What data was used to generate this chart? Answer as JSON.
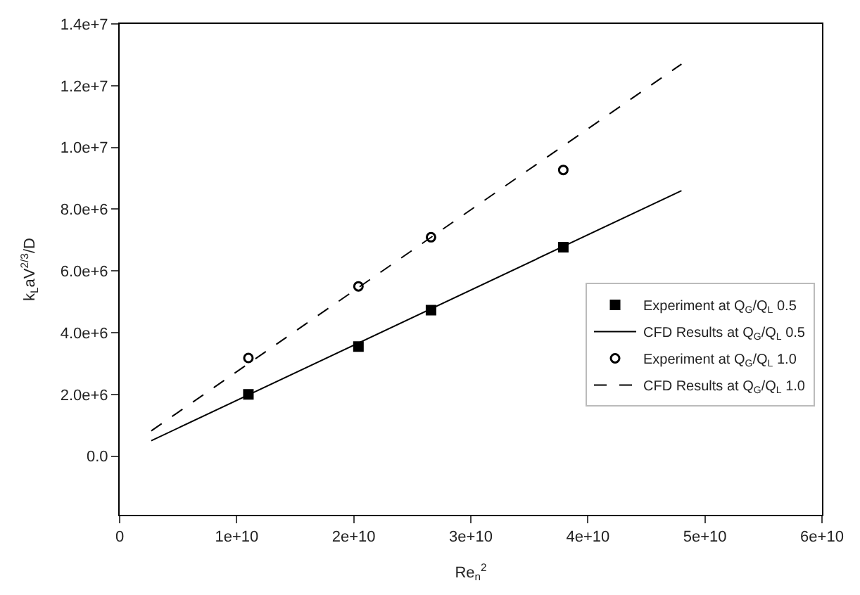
{
  "chart_data": {
    "type": "scatter",
    "xlabel": "Re$_{n}$$^{2}$",
    "ylabel": "k$_{L}$aV$^{2/3}$/D",
    "xlim": [
      0,
      60000000000.0
    ],
    "ylim": [
      -1900000.0,
      14000000.0
    ],
    "xticks": [
      0,
      {
        "value": 10000000000.0,
        "label": "1e+10"
      },
      {
        "value": 20000000000.0,
        "label": "2e+10"
      },
      {
        "value": 30000000000.0,
        "label": "3e+10"
      },
      {
        "value": 40000000000.0,
        "label": "4e+10"
      },
      {
        "value": 50000000000.0,
        "label": "5e+10"
      },
      {
        "value": 60000000000.0,
        "label": "6e+10"
      }
    ],
    "yticks": [
      {
        "value": 0,
        "label": "0.0"
      },
      {
        "value": 2000000.0,
        "label": "2.0e+6"
      },
      {
        "value": 4000000.0,
        "label": "4.0e+6"
      },
      {
        "value": 6000000.0,
        "label": "6.0e+6"
      },
      {
        "value": 8000000.0,
        "label": "8.0e+6"
      },
      {
        "value": 10000000.0,
        "label": "1.0e+7"
      },
      {
        "value": 12000000.0,
        "label": "1.2e+7"
      },
      {
        "value": 14000000.0,
        "label": "1.4e+7"
      }
    ],
    "legend": "bottom right",
    "series": [
      {
        "name": "Experiment at Q$_{G}$/Q$_{L}$ 0.5",
        "marker": "square",
        "color": "#000000",
        "x": [
          11000000000.0,
          20400000000.0,
          26600000000.0,
          37900000000.0
        ],
        "values": [
          2000000.0,
          3550000.0,
          4730000.0,
          6770000.0
        ]
      },
      {
        "name": "CFD Results at Q$_{G}$/Q$_{L}$ 0.5",
        "type": "line",
        "line_style": "solid",
        "color": "#000000",
        "x": [
          2700000000.0,
          48000000000.0
        ],
        "values": [
          500000.0,
          8600000.0
        ]
      },
      {
        "name": "Experiment at Q$_{G}$/Q$_{L}$ 1.0",
        "marker": "circle-open",
        "color": "#000000",
        "x": [
          11000000000.0,
          20400000000.0,
          26600000000.0,
          37900000000.0
        ],
        "values": [
          3180000.0,
          5500000.0,
          7090000.0,
          9270000.0
        ]
      },
      {
        "name": "CFD Results at Q$_{G}$/Q$_{L}$ 1.0",
        "type": "line",
        "line_style": "dashed",
        "color": "#000000",
        "x": [
          2700000000.0,
          48000000000.0
        ],
        "values": [
          820000.0,
          12700000.0
        ]
      }
    ]
  }
}
